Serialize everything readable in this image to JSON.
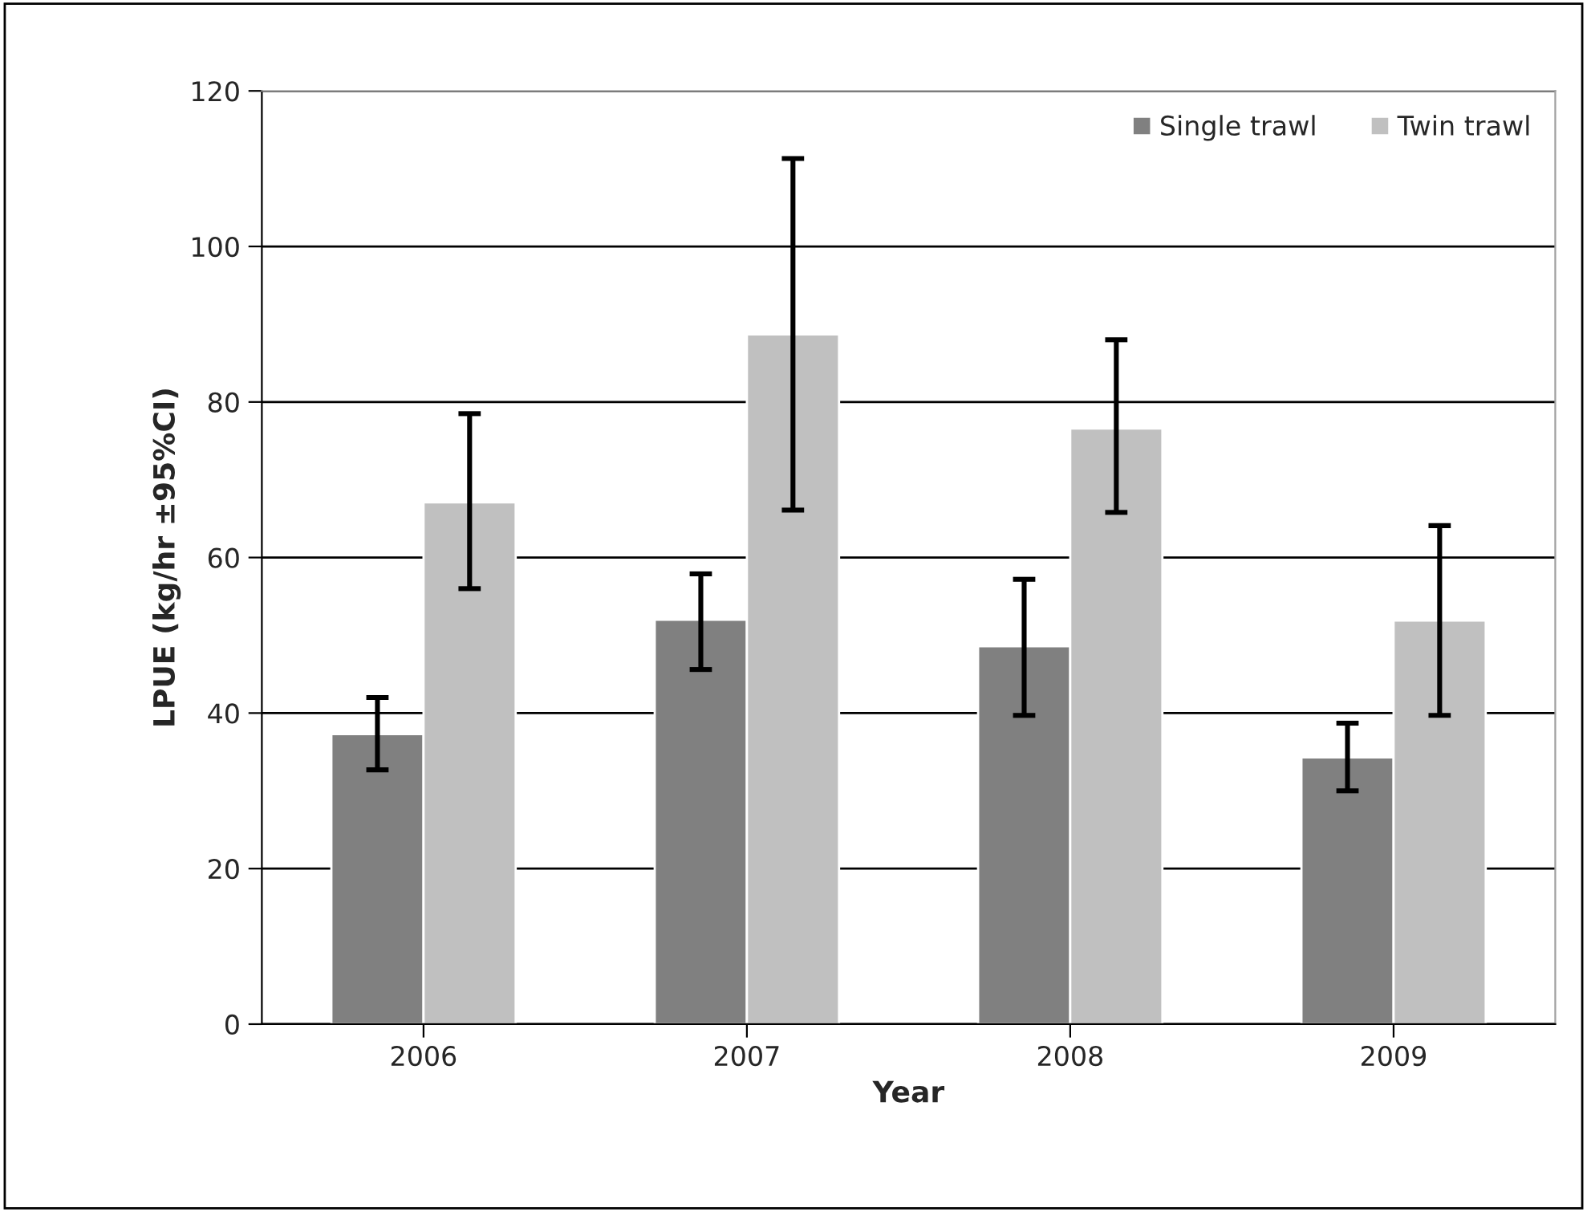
{
  "chart_data": {
    "type": "bar",
    "xlabel": "Year",
    "ylabel": "LPUE (kg/hr ±95%CI)",
    "categories": [
      "2006",
      "2007",
      "2008",
      "2009"
    ],
    "series": [
      {
        "name": "Single trawl",
        "color": "#808080",
        "values": [
          37.3,
          52.0,
          48.6,
          34.3
        ],
        "errors": [
          [
            32.7,
            42.0
          ],
          [
            45.6,
            57.9
          ],
          [
            39.7,
            57.2
          ],
          [
            30.0,
            38.7
          ]
        ]
      },
      {
        "name": "Twin trawl",
        "color": "#c0c0c0",
        "values": [
          67.1,
          88.7,
          76.6,
          51.9
        ],
        "errors": [
          [
            56.0,
            78.5
          ],
          [
            66.1,
            111.3
          ],
          [
            65.8,
            88.0
          ],
          [
            39.7,
            64.1
          ]
        ]
      }
    ],
    "ylim": [
      0,
      120
    ],
    "yticks": [
      0,
      20,
      40,
      60,
      80,
      100,
      120
    ],
    "grid": "y",
    "legend": "top right"
  }
}
